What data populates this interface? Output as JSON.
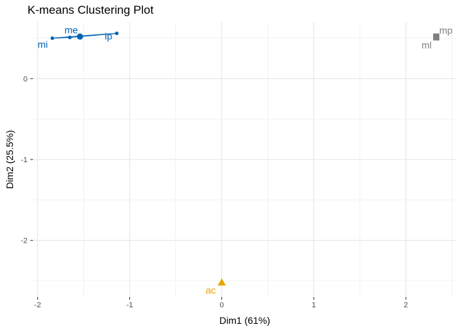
{
  "chart_data": {
    "type": "scatter",
    "title": "K-means Clustering Plot",
    "xlabel": "Dim1 (61%)",
    "ylabel": "Dim2 (25.5%)",
    "xlim": [
      -2.05,
      2.55
    ],
    "ylim": [
      -2.7,
      0.7
    ],
    "x_ticks": [
      -2,
      -1,
      0,
      1,
      2
    ],
    "y_ticks": [
      -2,
      -1,
      0
    ],
    "grid": true,
    "clusters": [
      {
        "id": "1",
        "color": "#0062B4",
        "marker": "circle",
        "points": [
          {
            "label": "mi",
            "x": -1.84,
            "y": 0.5
          },
          {
            "label": "me",
            "x": -1.65,
            "y": 0.51
          },
          {
            "label": "ip",
            "x": -1.14,
            "y": 0.56
          }
        ],
        "center": {
          "x": -1.54,
          "y": 0.52
        }
      },
      {
        "id": "2",
        "color": "#7F7F7F",
        "marker": "square",
        "points": [
          {
            "label": "mp",
            "x": 2.33,
            "y": 0.52
          },
          {
            "label": "ml",
            "x": 2.33,
            "y": 0.51
          }
        ],
        "center": {
          "x": 2.33,
          "y": 0.515
        }
      },
      {
        "id": "3",
        "color": "#E8A500",
        "marker": "triangle",
        "points": [
          {
            "label": "ac",
            "x": 0.0,
            "y": -2.52
          }
        ],
        "center": {
          "x": 0.0,
          "y": -2.52
        }
      }
    ]
  }
}
